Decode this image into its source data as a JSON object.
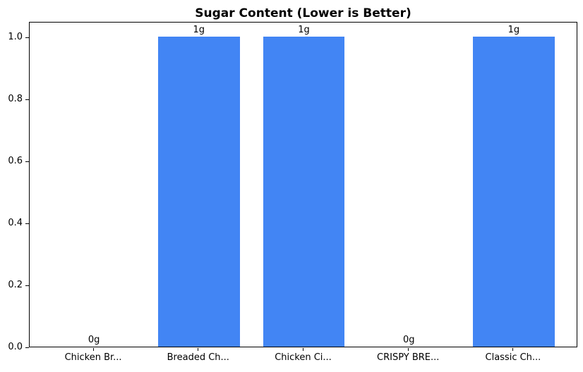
{
  "figure": {
    "background": "#ffffff"
  },
  "colors": {
    "bar": "#4285F4",
    "axis": "#000000",
    "text": "#000000"
  },
  "chart_data": {
    "type": "bar",
    "title": "Sugar Content (Lower is Better)",
    "categories": [
      "Chicken Br...",
      "Breaded Ch...",
      "Chicken Ci...",
      "CRISPY BRE...",
      "Classic Ch..."
    ],
    "values": [
      0,
      1,
      1,
      0,
      1
    ],
    "bar_labels": [
      "0g",
      "1g",
      "1g",
      "0g",
      "1g"
    ],
    "xlabel": "",
    "ylabel": "",
    "ylim": [
      0,
      1.05
    ],
    "yticks": [
      0.0,
      0.2,
      0.4,
      0.6,
      0.8,
      1.0
    ],
    "ytick_labels": [
      "0.0",
      "0.2",
      "0.4",
      "0.6",
      "0.8",
      "1.0"
    ],
    "grid": false,
    "legend": null,
    "bar_color": "#4285F4"
  }
}
